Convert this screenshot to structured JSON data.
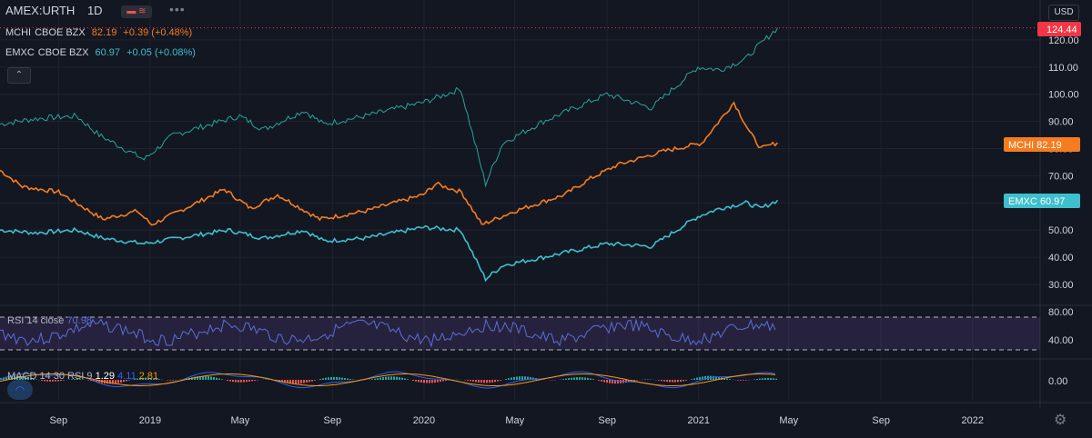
{
  "legend": {
    "symbol": "AMEX:URTH",
    "interval": "1D",
    "compare": [
      {
        "ticker": "MCHI",
        "exchange": "CBOE BZX",
        "last": "82.19",
        "change": "+0.39 (+0.48%)",
        "color": "#f57c1f"
      },
      {
        "ticker": "EMXC",
        "exchange": "CBOE BZX",
        "last": "60.97",
        "change": "+0.05 (+0.08%)",
        "color": "#3dbfcc"
      }
    ]
  },
  "price_scale": {
    "currency": "USD",
    "last_label": "124.44",
    "last_label_color": "#f23645",
    "mchi_label": "MCHI  82.19",
    "emxc_label": "EMXC  60.97"
  },
  "rsi": {
    "label": "RSI 14 close",
    "value": "70.98",
    "upper": "80.00",
    "lower": "40.00"
  },
  "macd": {
    "label": "MACD 14 30 RSI 9",
    "hist": "1.29",
    "macd": "4.11",
    "signal": "2.81",
    "zero": "0.00"
  },
  "chart_data": {
    "type": "line",
    "price_ticks": [
      30,
      40,
      50,
      60,
      70,
      80,
      90,
      100,
      110,
      120
    ],
    "price_tick_labels": [
      "30.00",
      "40.00",
      "50.00",
      "60.00",
      "70.00",
      "80.00",
      "90.00",
      "100.00",
      "110.00",
      "120.00"
    ],
    "time_ticks": [
      {
        "label": "Sep",
        "date": "2018-09-01"
      },
      {
        "label": "2019",
        "date": "2019-01-01"
      },
      {
        "label": "May",
        "date": "2019-05-01"
      },
      {
        "label": "Sep",
        "date": "2019-09-01"
      },
      {
        "label": "2020",
        "date": "2020-01-01"
      },
      {
        "label": "May",
        "date": "2020-05-01"
      },
      {
        "label": "Sep",
        "date": "2020-09-01"
      },
      {
        "label": "2021",
        "date": "2021-01-01"
      },
      {
        "label": "May",
        "date": "2021-05-01"
      },
      {
        "label": "Sep",
        "date": "2021-09-01"
      },
      {
        "label": "2022",
        "date": "2022-01-01"
      }
    ],
    "series": [
      {
        "name": "AMEX:URTH",
        "color": "#26a69a",
        "points": [
          [
            "2018-06-15",
            89
          ],
          [
            "2018-08-01",
            91
          ],
          [
            "2018-09-25",
            92
          ],
          [
            "2018-10-25",
            85
          ],
          [
            "2018-12-24",
            76
          ],
          [
            "2019-02-01",
            85
          ],
          [
            "2019-04-30",
            92
          ],
          [
            "2019-06-01",
            87
          ],
          [
            "2019-07-25",
            94
          ],
          [
            "2019-08-20",
            89
          ],
          [
            "2019-10-15",
            92
          ],
          [
            "2019-12-31",
            97
          ],
          [
            "2020-02-19",
            102
          ],
          [
            "2020-03-23",
            67
          ],
          [
            "2020-04-15",
            82
          ],
          [
            "2020-06-08",
            90
          ],
          [
            "2020-09-01",
            100
          ],
          [
            "2020-10-30",
            95
          ],
          [
            "2020-12-31",
            110
          ],
          [
            "2021-01-29",
            109
          ],
          [
            "2021-03-05",
            113
          ],
          [
            "2021-03-15",
            116
          ],
          [
            "2021-04-16",
            124.44
          ]
        ]
      },
      {
        "name": "MCHI",
        "color": "#f57c1f",
        "points": [
          [
            "2018-06-15",
            72
          ],
          [
            "2018-07-15",
            66
          ],
          [
            "2018-09-01",
            64
          ],
          [
            "2018-10-30",
            54
          ],
          [
            "2018-12-15",
            57
          ],
          [
            "2019-01-03",
            52
          ],
          [
            "2019-04-10",
            65
          ],
          [
            "2019-05-15",
            58
          ],
          [
            "2019-06-20",
            63
          ],
          [
            "2019-08-15",
            54
          ],
          [
            "2019-10-15",
            57
          ],
          [
            "2019-12-31",
            63
          ],
          [
            "2020-01-17",
            67
          ],
          [
            "2020-02-20",
            64
          ],
          [
            "2020-03-18",
            52
          ],
          [
            "2020-05-01",
            57
          ],
          [
            "2020-07-06",
            63
          ],
          [
            "2020-08-10",
            69
          ],
          [
            "2020-09-15",
            74
          ],
          [
            "2020-11-15",
            79
          ],
          [
            "2021-01-05",
            82
          ],
          [
            "2021-02-17",
            97
          ],
          [
            "2021-03-10",
            86
          ],
          [
            "2021-03-25",
            80
          ],
          [
            "2021-04-16",
            82.19
          ]
        ]
      },
      {
        "name": "EMXC",
        "color": "#3dbfcc",
        "points": [
          [
            "2018-06-15",
            50
          ],
          [
            "2018-08-01",
            49
          ],
          [
            "2018-09-25",
            50
          ],
          [
            "2018-10-30",
            47
          ],
          [
            "2018-12-24",
            45
          ],
          [
            "2019-04-15",
            50
          ],
          [
            "2019-06-01",
            47
          ],
          [
            "2019-07-25",
            50
          ],
          [
            "2019-08-20",
            46
          ],
          [
            "2019-10-15",
            47
          ],
          [
            "2019-12-31",
            51
          ],
          [
            "2020-02-19",
            50
          ],
          [
            "2020-03-23",
            32
          ],
          [
            "2020-04-15",
            37
          ],
          [
            "2020-06-08",
            40
          ],
          [
            "2020-09-01",
            45
          ],
          [
            "2020-10-30",
            44
          ],
          [
            "2020-12-31",
            55
          ],
          [
            "2021-01-29",
            58
          ],
          [
            "2021-03-05",
            60
          ],
          [
            "2021-03-25",
            58
          ],
          [
            "2021-04-16",
            60.97
          ]
        ]
      }
    ]
  }
}
